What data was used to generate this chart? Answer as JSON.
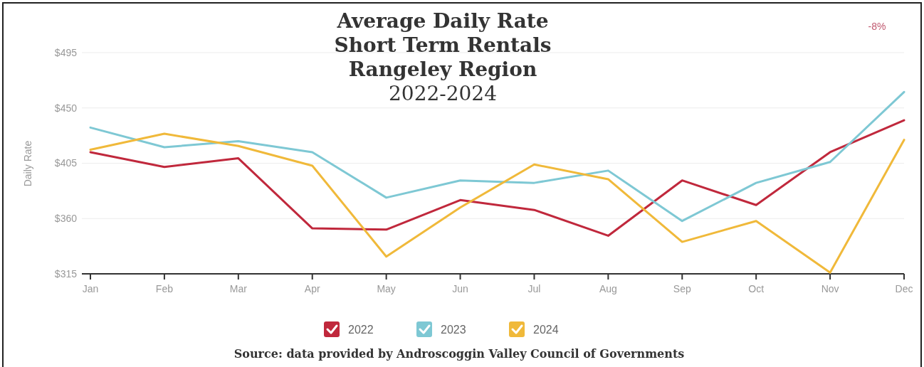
{
  "chart_data": {
    "type": "line",
    "title": "Average Daily Rate\nShort Term Rentals\nRangeley Region",
    "subtitle": "2022-2024",
    "ylabel": "Daily Rate",
    "categories": [
      "Jan",
      "Feb",
      "Mar",
      "Apr",
      "May",
      "Jun",
      "Jul",
      "Aug",
      "Sep",
      "Oct",
      "Nov",
      "Dec"
    ],
    "series": [
      {
        "name": "2022",
        "color": "#c0283c",
        "values": [
          414,
          402,
          409,
          352,
          351,
          375,
          367,
          346,
          391,
          371,
          414,
          440
        ]
      },
      {
        "name": "2023",
        "color": "#7ec8d4",
        "values": [
          434,
          418,
          423,
          414,
          377,
          391,
          389,
          399,
          358,
          389,
          406,
          463
        ]
      },
      {
        "name": "2024",
        "color": "#f0b93a",
        "values": [
          416,
          429,
          419,
          403,
          329,
          369,
          404,
          392,
          341,
          358,
          316,
          424
        ]
      }
    ],
    "ylim": [
      315,
      495
    ],
    "yticks": [
      {
        "value": 315,
        "label": "$315"
      },
      {
        "value": 360,
        "label": "$360"
      },
      {
        "value": 405,
        "label": "$405"
      },
      {
        "value": 450,
        "label": "$450"
      },
      {
        "value": 495,
        "label": "$495"
      }
    ],
    "grid": "y",
    "legend": "bottom",
    "marker": "none",
    "line_style": "solid",
    "annotations": [
      "-8%",
      "Source: data provided by Androscoggin Valley Council of Governments"
    ]
  }
}
